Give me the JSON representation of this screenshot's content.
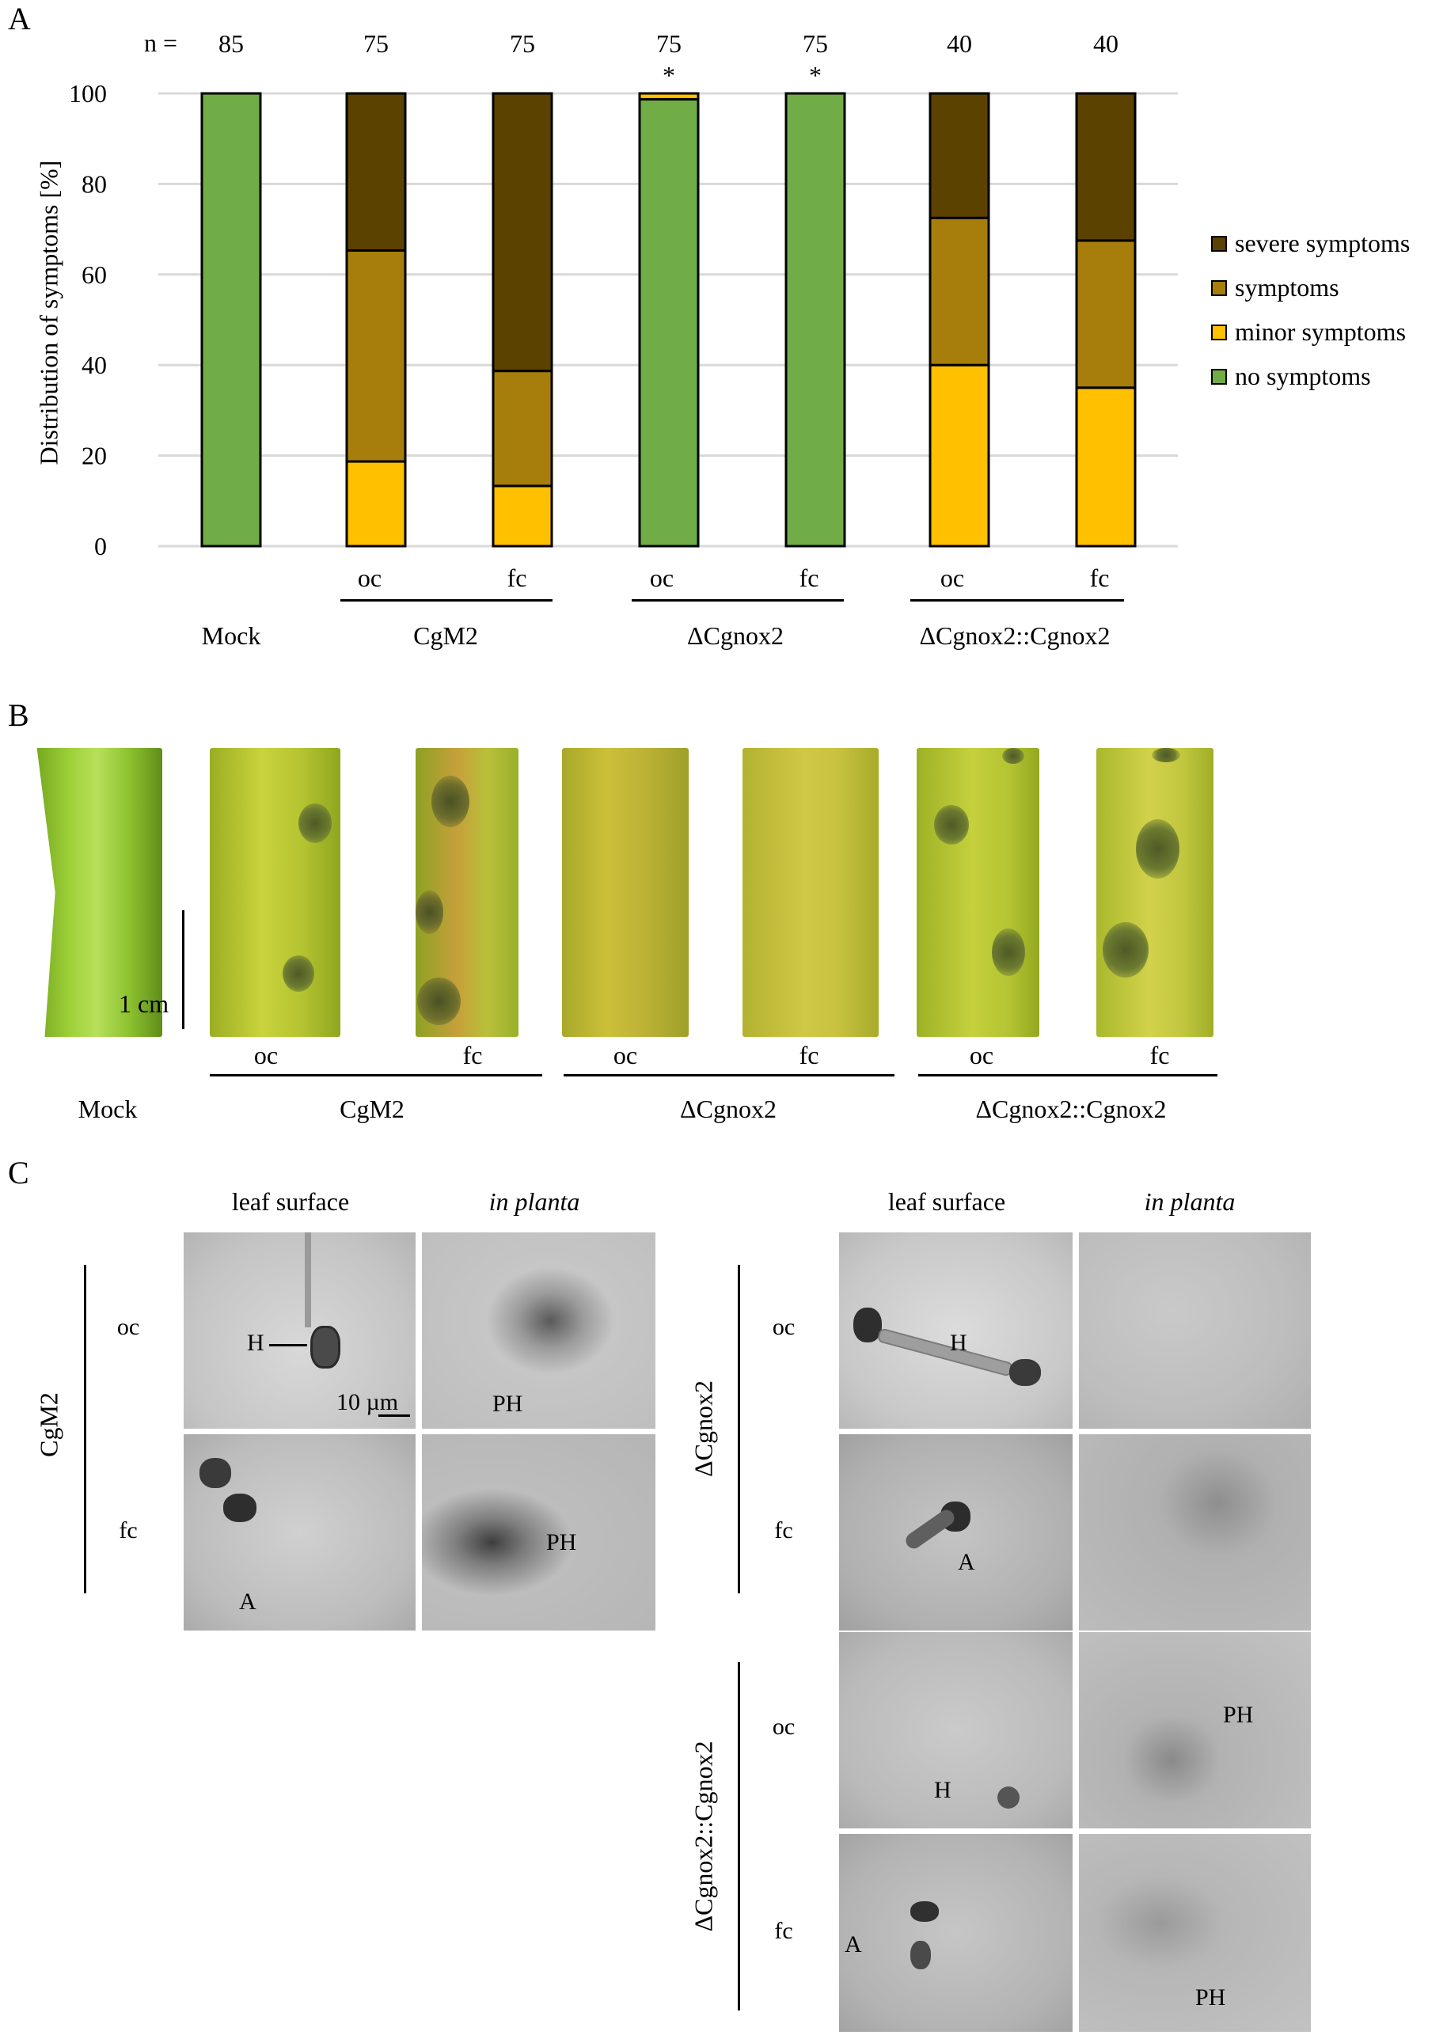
{
  "panels": {
    "a": "A",
    "b": "B",
    "c": "C"
  },
  "chart_data": {
    "type": "bar",
    "stacked": true,
    "ylabel": "Distribution of symptoms [%]",
    "ylim": [
      0,
      100
    ],
    "yticks": [
      "0",
      "20",
      "40",
      "60",
      "80",
      "100"
    ],
    "grid": true,
    "n_prefix": "n =",
    "categories": [
      "Mock",
      "CgM2 oc",
      "CgM2 fc",
      "ΔCgnox2 oc",
      "ΔCgnox2 fc",
      "ΔCgnox2::Cgnox2 oc",
      "ΔCgnox2::Cgnox2 fc"
    ],
    "n": [
      "85",
      "75",
      "75",
      "75",
      "75",
      "40",
      "40"
    ],
    "significance": [
      "",
      "",
      "",
      "*",
      "*",
      "",
      ""
    ],
    "series": [
      {
        "name": "no symptoms",
        "color": "#70AD47",
        "values": [
          100,
          0,
          0,
          98.7,
          100,
          0,
          0
        ]
      },
      {
        "name": "minor symptoms",
        "color": "#FFC000",
        "values": [
          0,
          18.7,
          13.3,
          1.3,
          0,
          40,
          35
        ]
      },
      {
        "name": "symptoms",
        "color": "#A77E0B",
        "values": [
          0,
          46.6,
          25.4,
          0,
          0,
          32.5,
          32.5
        ]
      },
      {
        "name": "severe symptoms",
        "color": "#5C4201",
        "values": [
          0,
          34.7,
          61.3,
          0,
          0,
          27.5,
          32.5
        ]
      }
    ],
    "legend": [
      "severe symptoms",
      "symptoms",
      "minor symptoms",
      "no symptoms"
    ],
    "legend_position": "right",
    "sublabels": [
      "oc",
      "fc",
      "oc",
      "fc",
      "oc",
      "fc"
    ],
    "groups": [
      "Mock",
      "CgM2",
      "ΔCgnox2",
      "ΔCgnox2::Cgnox2"
    ]
  },
  "leaves": {
    "scale_bar": "1 cm",
    "sublabels": [
      "oc",
      "fc",
      "oc",
      "fc",
      "oc",
      "fc"
    ],
    "groups": [
      "Mock",
      "CgM2",
      "ΔCgnox2",
      "ΔCgnox2::Cgnox2"
    ]
  },
  "micro": {
    "col_headers": {
      "surface": "leaf surface",
      "planta": "in planta"
    },
    "strains": {
      "cgm2": "CgM2",
      "delta": "ΔCgnox2",
      "comp": "ΔCgnox2::Cgnox2"
    },
    "rows": {
      "oc": "oc",
      "fc": "fc"
    },
    "scale_bar": "10 µm",
    "annotations": {
      "h": "H",
      "a": "A",
      "ph": "PH"
    }
  }
}
